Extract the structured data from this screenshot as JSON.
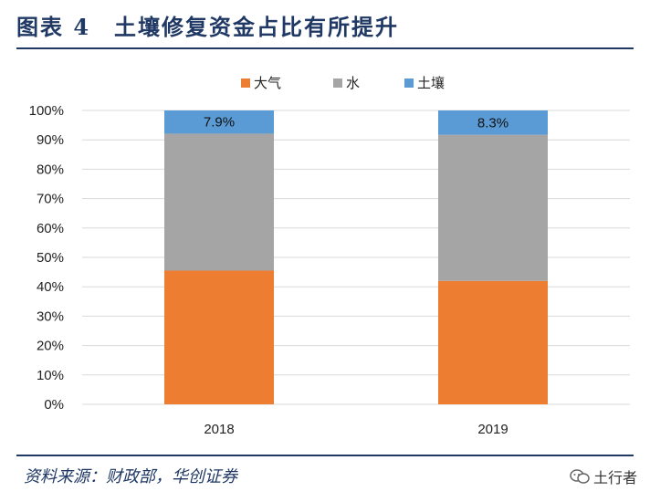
{
  "figure": {
    "title": "图表 4　土壤修复资金占比有所提升",
    "source": "资料来源：财政部，华创证券",
    "watermark": "土行者"
  },
  "chart_data": {
    "type": "bar",
    "stacked": true,
    "categories": [
      "2018",
      "2019"
    ],
    "series": [
      {
        "name": "大气",
        "color": "#ed7d31",
        "values": [
          45.5,
          42.0
        ]
      },
      {
        "name": "水",
        "color": "#a5a5a5",
        "values": [
          46.6,
          49.7
        ]
      },
      {
        "name": "土壤",
        "color": "#5b9bd5",
        "values": [
          7.9,
          8.3
        ]
      }
    ],
    "data_labels": [
      "7.9%",
      "8.3%"
    ],
    "ylim": [
      0,
      100
    ],
    "yticks": [
      "0%",
      "10%",
      "20%",
      "30%",
      "40%",
      "50%",
      "60%",
      "70%",
      "80%",
      "90%",
      "100%"
    ],
    "grid": true,
    "legend": "top-center",
    "title": "",
    "xlabel": "",
    "ylabel": ""
  }
}
